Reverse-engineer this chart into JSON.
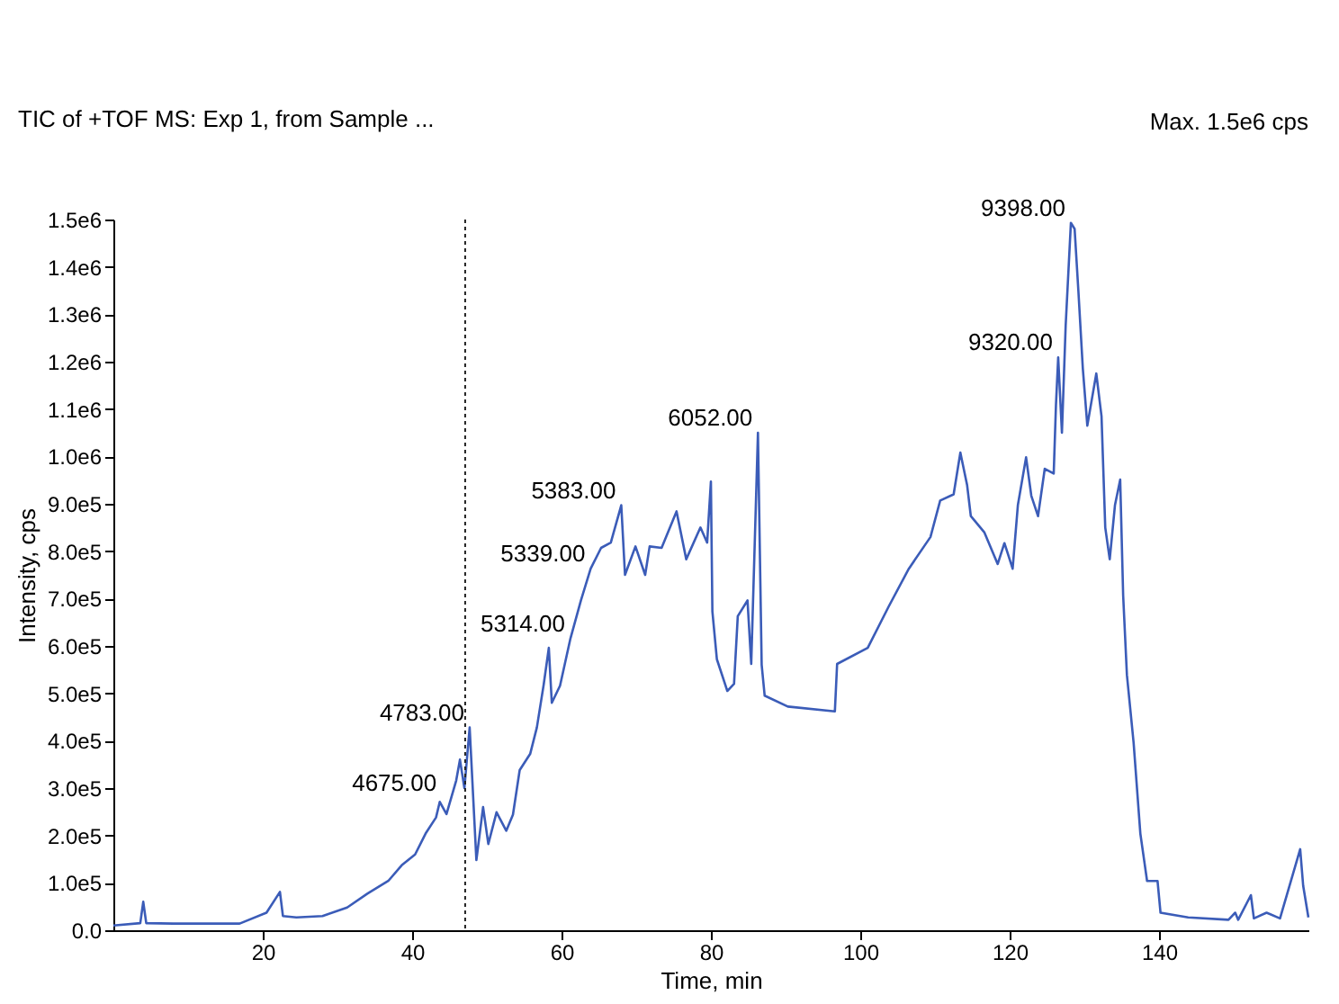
{
  "chart_data": {
    "type": "line",
    "xlabel": "Time, min",
    "ylabel": "Intensity, cps",
    "legend": "top left",
    "annotations": [
      "Max. 1.5e6 cps",
      {
        "text": "4675.00",
        "x": 44,
        "y": 280000
      },
      {
        "text": "4783.00",
        "x": 47.7,
        "y": 428000
      },
      {
        "text": "5314.00",
        "x": 61.2,
        "y": 616000
      },
      {
        "text": "5339.00",
        "x": 63.9,
        "y": 763000
      },
      {
        "text": "5383.00",
        "x": 68,
        "y": 897000
      },
      {
        "text": "6052.00",
        "x": 86.3,
        "y": 1050000
      },
      {
        "text": "9398.00",
        "x": 128.2,
        "y": 1493000
      },
      {
        "text": "9320.00",
        "x": 126.5,
        "y": 1209000
      }
    ],
    "ref_lines": [
      {
        "axis": "x",
        "value": 47.1,
        "color": "#222222",
        "line_style": "dotted"
      }
    ],
    "xlim": [
      0,
      160
    ],
    "xticks": [
      20,
      40,
      60,
      80,
      100,
      120,
      140
    ],
    "ylim": [
      0,
      1500000
    ],
    "yticks": [
      {
        "value": 0,
        "label": "0.0"
      },
      {
        "value": 100000,
        "label": "1.0e5"
      },
      {
        "value": 200000,
        "label": "2.0e5"
      },
      {
        "value": 300000,
        "label": "3.0e5"
      },
      {
        "value": 400000,
        "label": "4.0e5"
      },
      {
        "value": 500000,
        "label": "5.0e5"
      },
      {
        "value": 600000,
        "label": "6.0e5"
      },
      {
        "value": 700000,
        "label": "7.0e5"
      },
      {
        "value": 800000,
        "label": "8.0e5"
      },
      {
        "value": 900000,
        "label": "9.0e5"
      },
      {
        "value": 1000000,
        "label": "1.0e6"
      },
      {
        "value": 1100000,
        "label": "1.1e6"
      },
      {
        "value": 1200000,
        "label": "1.2e6"
      },
      {
        "value": 1300000,
        "label": "1.3e6"
      },
      {
        "value": 1400000,
        "label": "1.4e6"
      },
      {
        "value": 1500000,
        "label": "1.5e6"
      }
    ],
    "series": [
      {
        "name": "TIC of +TOF MS: Exp 1, from Sample ...",
        "color": "#3b5cb8",
        "x": [
          0,
          3.6,
          4,
          4.4,
          8,
          16.9,
          20.5,
          22.3,
          22.7,
          24.5,
          28,
          31.3,
          34,
          36.8,
          38.6,
          40.4,
          41.8,
          43.2,
          43.7,
          44.6,
          45.9,
          46.4,
          47,
          47.7,
          48.6,
          49.5,
          50.2,
          51.3,
          52.6,
          53.5,
          54.4,
          55.8,
          56.7,
          57.6,
          58.3,
          58.7,
          59.8,
          61.2,
          62.6,
          63.9,
          65.3,
          66.6,
          68,
          68.5,
          69.9,
          71.2,
          71.8,
          73.4,
          75.4,
          76.7,
          78.6,
          79.5,
          80,
          80.2,
          80.8,
          82.2,
          83.1,
          83.6,
          84.9,
          85.4,
          86.3,
          86.8,
          87.2,
          90.3,
          96.6,
          96.9,
          101,
          103.8,
          106.5,
          109.4,
          110.7,
          112.5,
          113.4,
          114.3,
          114.8,
          116.6,
          118.4,
          119.3,
          120.4,
          121.1,
          122.2,
          122.9,
          123.8,
          124.7,
          125.9,
          126.2,
          126.5,
          127,
          127.5,
          128.2,
          128.7,
          129.2,
          129.8,
          130.4,
          131,
          131.6,
          132.3,
          132.8,
          133.4,
          134.1,
          134.8,
          135.2,
          135.7,
          136.6,
          137.5,
          138.4,
          139.8,
          140.2,
          143.9,
          149.3,
          150.2,
          150.6,
          152.3,
          152.7,
          154.4,
          156.2,
          158.9,
          159.3,
          160
        ],
        "values": [
          10000,
          15000,
          60000,
          15000,
          14000,
          14000,
          37000,
          81000,
          30000,
          27000,
          30000,
          48000,
          77000,
          104000,
          137000,
          160000,
          204000,
          238000,
          271000,
          245000,
          316000,
          360000,
          300000,
          428000,
          148000,
          260000,
          182000,
          249000,
          210000,
          244000,
          338000,
          372000,
          428000,
          517000,
          596000,
          480000,
          516000,
          616000,
          696000,
          763000,
          807000,
          818000,
          897000,
          750000,
          810000,
          750000,
          810000,
          807000,
          884000,
          783000,
          850000,
          818000,
          947000,
          673000,
          572000,
          505000,
          520000,
          663000,
          696000,
          562000,
          1050000,
          560000,
          495000,
          472000,
          462000,
          562000,
          596000,
          683000,
          763000,
          830000,
          907000,
          920000,
          1008000,
          940000,
          874000,
          840000,
          773000,
          817000,
          763000,
          897000,
          998000,
          917000,
          874000,
          974000,
          964000,
          1108000,
          1209000,
          1050000,
          1276000,
          1493000,
          1480000,
          1350000,
          1185000,
          1065000,
          1120000,
          1175000,
          1085000,
          850000,
          783000,
          897000,
          951000,
          706000,
          539000,
          395000,
          204000,
          104000,
          104000,
          37000,
          27000,
          22000,
          37000,
          22000,
          74000,
          25000,
          37000,
          25000,
          171000,
          94000,
          27000
        ]
      }
    ]
  }
}
